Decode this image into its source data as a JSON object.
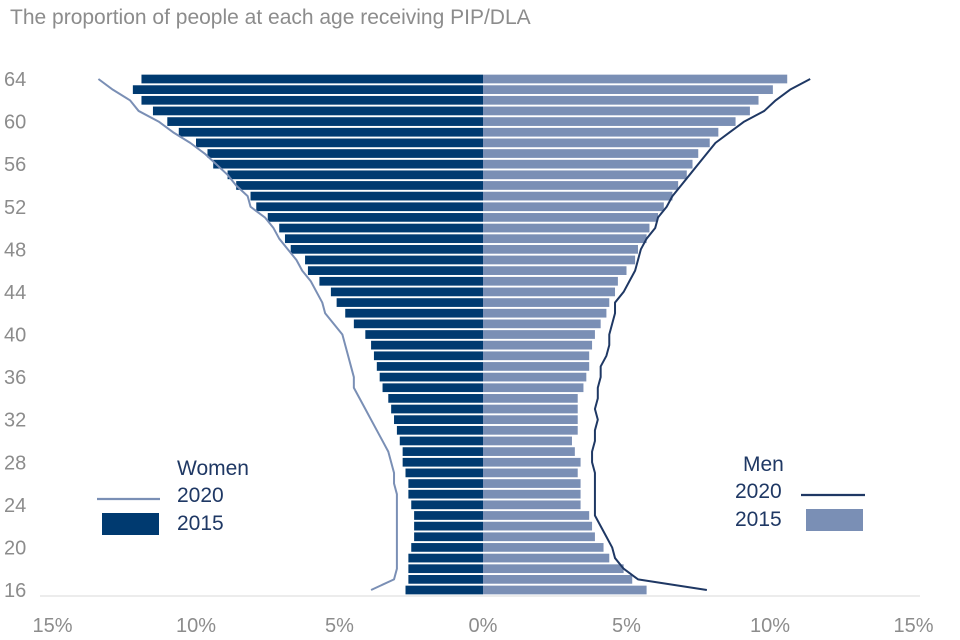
{
  "chart_data": {
    "type": "bar",
    "orientation": "horizontal-population-pyramid",
    "title": "The proportion of people at each age receiving PIP/DLA",
    "y_categories": [
      16,
      17,
      18,
      19,
      20,
      21,
      22,
      23,
      24,
      25,
      26,
      27,
      28,
      29,
      30,
      31,
      32,
      33,
      34,
      35,
      36,
      37,
      38,
      39,
      40,
      41,
      42,
      43,
      44,
      45,
      46,
      47,
      48,
      49,
      50,
      51,
      52,
      53,
      54,
      55,
      56,
      57,
      58,
      59,
      60,
      61,
      62,
      63,
      64
    ],
    "y_tick_labels": [
      "16",
      "20",
      "24",
      "28",
      "32",
      "36",
      "40",
      "44",
      "48",
      "52",
      "56",
      "60",
      "64"
    ],
    "x_tick_labels": [
      "15%",
      "10%",
      "5%",
      "0%",
      "5%",
      "10%",
      "15%"
    ],
    "xlim_percent": [
      -15,
      15
    ],
    "grid": false,
    "series": [
      {
        "name": "Women 2015",
        "kind": "bar",
        "side": "left",
        "color": "#003a70",
        "values": [
          2.7,
          2.6,
          2.6,
          2.6,
          2.5,
          2.4,
          2.4,
          2.4,
          2.5,
          2.6,
          2.6,
          2.7,
          2.8,
          2.8,
          2.9,
          3.0,
          3.1,
          3.2,
          3.3,
          3.5,
          3.6,
          3.7,
          3.8,
          3.9,
          4.1,
          4.5,
          4.8,
          5.1,
          5.3,
          5.7,
          6.1,
          6.2,
          6.7,
          6.9,
          7.1,
          7.5,
          7.9,
          8.1,
          8.6,
          8.9,
          9.4,
          9.6,
          10.0,
          10.6,
          11.0,
          11.5,
          11.9,
          12.2,
          11.9
        ]
      },
      {
        "name": "Men 2015",
        "kind": "bar",
        "side": "right",
        "color": "#7a8fb5",
        "values": [
          5.7,
          5.2,
          4.9,
          4.4,
          4.2,
          3.9,
          3.8,
          3.7,
          3.4,
          3.4,
          3.4,
          3.3,
          3.4,
          3.2,
          3.1,
          3.3,
          3.3,
          3.3,
          3.3,
          3.5,
          3.6,
          3.7,
          3.7,
          3.8,
          3.9,
          4.1,
          4.3,
          4.4,
          4.6,
          4.7,
          5.0,
          5.3,
          5.4,
          5.7,
          5.8,
          6.1,
          6.3,
          6.6,
          6.8,
          7.1,
          7.3,
          7.5,
          7.9,
          8.2,
          8.8,
          9.3,
          9.6,
          10.1,
          10.6
        ]
      },
      {
        "name": "Women 2020",
        "kind": "line",
        "side": "left",
        "color": "#7a8fb5",
        "values": [
          3.9,
          3.1,
          3.0,
          3.0,
          3.0,
          3.0,
          3.0,
          3.0,
          3.0,
          3.0,
          3.1,
          3.1,
          3.2,
          3.3,
          3.5,
          3.7,
          3.9,
          4.1,
          4.3,
          4.5,
          4.5,
          4.6,
          4.7,
          4.8,
          4.9,
          5.2,
          5.5,
          5.6,
          5.8,
          6.0,
          6.3,
          6.5,
          6.8,
          7.1,
          7.3,
          7.6,
          8.1,
          8.2,
          8.6,
          8.9,
          9.3,
          9.7,
          10.2,
          10.8,
          11.3,
          12.0,
          12.3,
          12.9,
          13.4
        ]
      },
      {
        "name": "Men 2020",
        "kind": "line",
        "side": "right",
        "color": "#1f3864",
        "values": [
          7.8,
          5.4,
          4.9,
          4.6,
          4.5,
          4.3,
          4.1,
          3.9,
          3.9,
          3.9,
          3.9,
          3.9,
          3.8,
          3.8,
          3.9,
          3.9,
          4.0,
          3.9,
          4.0,
          4.0,
          4.1,
          4.1,
          4.3,
          4.4,
          4.4,
          4.5,
          4.6,
          4.6,
          4.9,
          5.1,
          5.3,
          5.4,
          5.5,
          5.7,
          6.0,
          6.1,
          6.4,
          6.6,
          6.9,
          7.2,
          7.5,
          7.8,
          8.1,
          8.6,
          9.1,
          9.8,
          10.2,
          10.7,
          11.4
        ]
      }
    ],
    "legend": {
      "women": {
        "title": "Women",
        "line_label": "2020",
        "bar_label": "2015",
        "placement": "left"
      },
      "men": {
        "title": "Men",
        "line_label": "2020",
        "bar_label": "2015",
        "placement": "right"
      }
    }
  }
}
